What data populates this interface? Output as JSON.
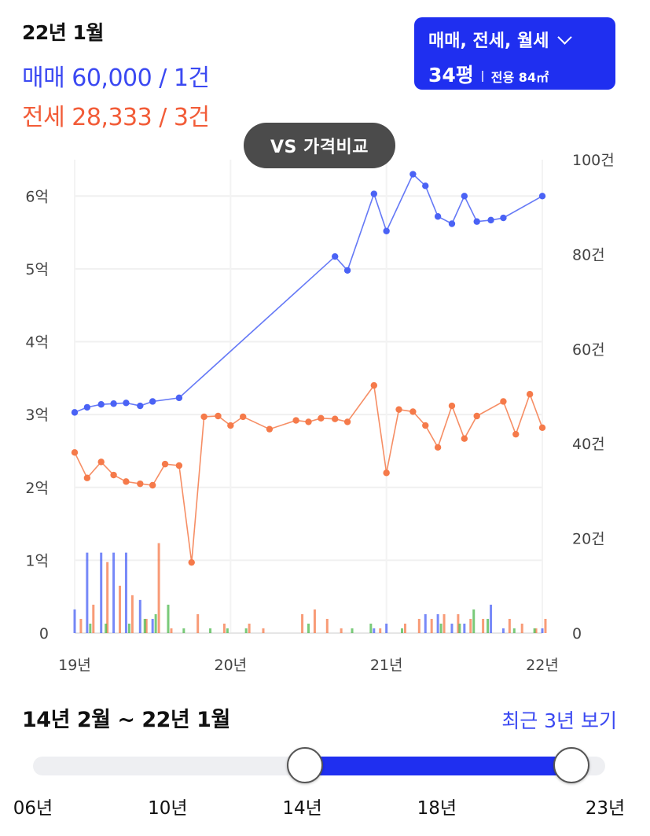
{
  "period": "22년 1월",
  "sale_line": "매매 60,000 / 1건",
  "jeonse_line": "전세 28,333 / 3건",
  "type_selector": {
    "label": "매매, 전세, 월세",
    "size": "34평",
    "area": "전용 84㎡"
  },
  "vs_button": "VS 가격비교",
  "colors": {
    "sale": "#4a62f5",
    "jeonse": "#f57a4a",
    "monthly": "#4cb84c",
    "accent": "#1f2ff0"
  },
  "chart_data": {
    "type": "line",
    "x_ticks": [
      {
        "x": 2019,
        "label": "19년"
      },
      {
        "x": 2020,
        "label": "20년"
      },
      {
        "x": 2021,
        "label": "21년"
      },
      {
        "x": 2022,
        "label": "22년"
      }
    ],
    "y_ticks_left": [
      {
        "v": 0,
        "label": "0"
      },
      {
        "v": 1,
        "label": "1억"
      },
      {
        "v": 2,
        "label": "2억"
      },
      {
        "v": 3,
        "label": "3억"
      },
      {
        "v": 4,
        "label": "4억"
      },
      {
        "v": 5,
        "label": "5억"
      },
      {
        "v": 6,
        "label": "6억"
      }
    ],
    "y_ticks_right": [
      {
        "v": 0,
        "label": "0"
      },
      {
        "v": 20,
        "label": "20건"
      },
      {
        "v": 40,
        "label": "40건"
      },
      {
        "v": 60,
        "label": "60건"
      },
      {
        "v": 80,
        "label": "80건"
      },
      {
        "v": 100,
        "label": "100건"
      }
    ],
    "y_left_range": [
      0,
      6.5
    ],
    "y_right_range": [
      0,
      100
    ],
    "x_range": [
      2019,
      2022
    ],
    "grid": true,
    "price_series": [
      {
        "name": "매매",
        "color": "#4a62f5",
        "points": [
          [
            2019.0,
            3.03
          ],
          [
            2019.08,
            3.1
          ],
          [
            2019.17,
            3.14
          ],
          [
            2019.25,
            3.15
          ],
          [
            2019.33,
            3.16
          ],
          [
            2019.42,
            3.12
          ],
          [
            2019.5,
            3.18
          ],
          [
            2019.67,
            3.23
          ],
          [
            2020.67,
            5.17
          ],
          [
            2020.75,
            4.98
          ],
          [
            2020.92,
            6.03
          ],
          [
            2021.0,
            5.52
          ],
          [
            2021.17,
            6.3
          ],
          [
            2021.25,
            6.14
          ],
          [
            2021.33,
            5.72
          ],
          [
            2021.42,
            5.62
          ],
          [
            2021.5,
            6.0
          ],
          [
            2021.58,
            5.65
          ],
          [
            2021.67,
            5.67
          ],
          [
            2021.75,
            5.7
          ],
          [
            2022.0,
            6.0
          ]
        ]
      },
      {
        "name": "전세",
        "color": "#f57a4a",
        "points": [
          [
            2019.0,
            2.48
          ],
          [
            2019.08,
            2.13
          ],
          [
            2019.17,
            2.35
          ],
          [
            2019.25,
            2.17
          ],
          [
            2019.33,
            2.08
          ],
          [
            2019.42,
            2.05
          ],
          [
            2019.5,
            2.03
          ],
          [
            2019.58,
            2.32
          ],
          [
            2019.67,
            2.3
          ],
          [
            2019.75,
            0.97
          ],
          [
            2019.83,
            2.97
          ],
          [
            2019.92,
            2.98
          ],
          [
            2020.0,
            2.85
          ],
          [
            2020.08,
            2.97
          ],
          [
            2020.25,
            2.8
          ],
          [
            2020.42,
            2.92
          ],
          [
            2020.5,
            2.9
          ],
          [
            2020.58,
            2.95
          ],
          [
            2020.67,
            2.94
          ],
          [
            2020.75,
            2.9
          ],
          [
            2020.92,
            3.4
          ],
          [
            2021.0,
            2.2
          ],
          [
            2021.08,
            3.07
          ],
          [
            2021.17,
            3.04
          ],
          [
            2021.25,
            2.85
          ],
          [
            2021.33,
            2.55
          ],
          [
            2021.42,
            3.12
          ],
          [
            2021.5,
            2.67
          ],
          [
            2021.58,
            2.98
          ],
          [
            2021.75,
            3.18
          ],
          [
            2021.83,
            2.73
          ],
          [
            2021.92,
            3.28
          ],
          [
            2022.0,
            2.82
          ]
        ]
      }
    ],
    "volume_series": [
      {
        "name": "매매",
        "color": "#4a62f5",
        "bars": [
          [
            2019.0,
            5
          ],
          [
            2019.08,
            17
          ],
          [
            2019.17,
            17
          ],
          [
            2019.25,
            17
          ],
          [
            2019.33,
            17
          ],
          [
            2019.42,
            7
          ],
          [
            2019.5,
            3
          ],
          [
            2020.92,
            1
          ],
          [
            2021.0,
            2
          ],
          [
            2021.25,
            4
          ],
          [
            2021.33,
            4
          ],
          [
            2021.42,
            2
          ],
          [
            2021.5,
            2
          ],
          [
            2021.67,
            6
          ],
          [
            2021.75,
            1
          ],
          [
            2022.0,
            1
          ]
        ]
      },
      {
        "name": "전세",
        "color": "#f57a4a",
        "bars": [
          [
            2019.04,
            3
          ],
          [
            2019.12,
            6
          ],
          [
            2019.21,
            15
          ],
          [
            2019.29,
            10
          ],
          [
            2019.37,
            8
          ],
          [
            2019.46,
            3
          ],
          [
            2019.54,
            19
          ],
          [
            2019.62,
            1
          ],
          [
            2019.79,
            4
          ],
          [
            2019.96,
            2
          ],
          [
            2020.12,
            2
          ],
          [
            2020.21,
            1
          ],
          [
            2020.46,
            4
          ],
          [
            2020.54,
            5
          ],
          [
            2020.62,
            3
          ],
          [
            2020.71,
            1
          ],
          [
            2020.96,
            1
          ],
          [
            2021.12,
            2
          ],
          [
            2021.21,
            3
          ],
          [
            2021.29,
            3
          ],
          [
            2021.37,
            4
          ],
          [
            2021.46,
            4
          ],
          [
            2021.54,
            3
          ],
          [
            2021.62,
            3
          ],
          [
            2021.79,
            3
          ],
          [
            2021.87,
            2
          ],
          [
            2021.96,
            1
          ],
          [
            2022.02,
            3
          ]
        ]
      },
      {
        "name": "월세",
        "color": "#4cb84c",
        "bars": [
          [
            2019.1,
            2
          ],
          [
            2019.2,
            2
          ],
          [
            2019.35,
            2
          ],
          [
            2019.45,
            3
          ],
          [
            2019.52,
            4
          ],
          [
            2019.6,
            6
          ],
          [
            2019.7,
            1
          ],
          [
            2019.87,
            1
          ],
          [
            2019.98,
            1
          ],
          [
            2020.1,
            1
          ],
          [
            2020.5,
            2
          ],
          [
            2020.78,
            1
          ],
          [
            2020.9,
            2
          ],
          [
            2021.1,
            1
          ],
          [
            2021.35,
            2
          ],
          [
            2021.47,
            2
          ],
          [
            2021.56,
            5
          ],
          [
            2021.65,
            3
          ],
          [
            2021.82,
            1
          ],
          [
            2021.95,
            1
          ]
        ]
      }
    ]
  },
  "range_label": "14년 2월 ~ 22년 1월",
  "recent_link": "최근 3년 보기",
  "slider": {
    "min": 2006,
    "max": 2023,
    "start": 2014.08,
    "end": 2022.0,
    "ticks": [
      {
        "v": 2006,
        "label": "06년"
      },
      {
        "v": 2010,
        "label": "10년"
      },
      {
        "v": 2014,
        "label": "14년"
      },
      {
        "v": 2018,
        "label": "18년"
      },
      {
        "v": 2023,
        "label": "23년"
      }
    ]
  }
}
